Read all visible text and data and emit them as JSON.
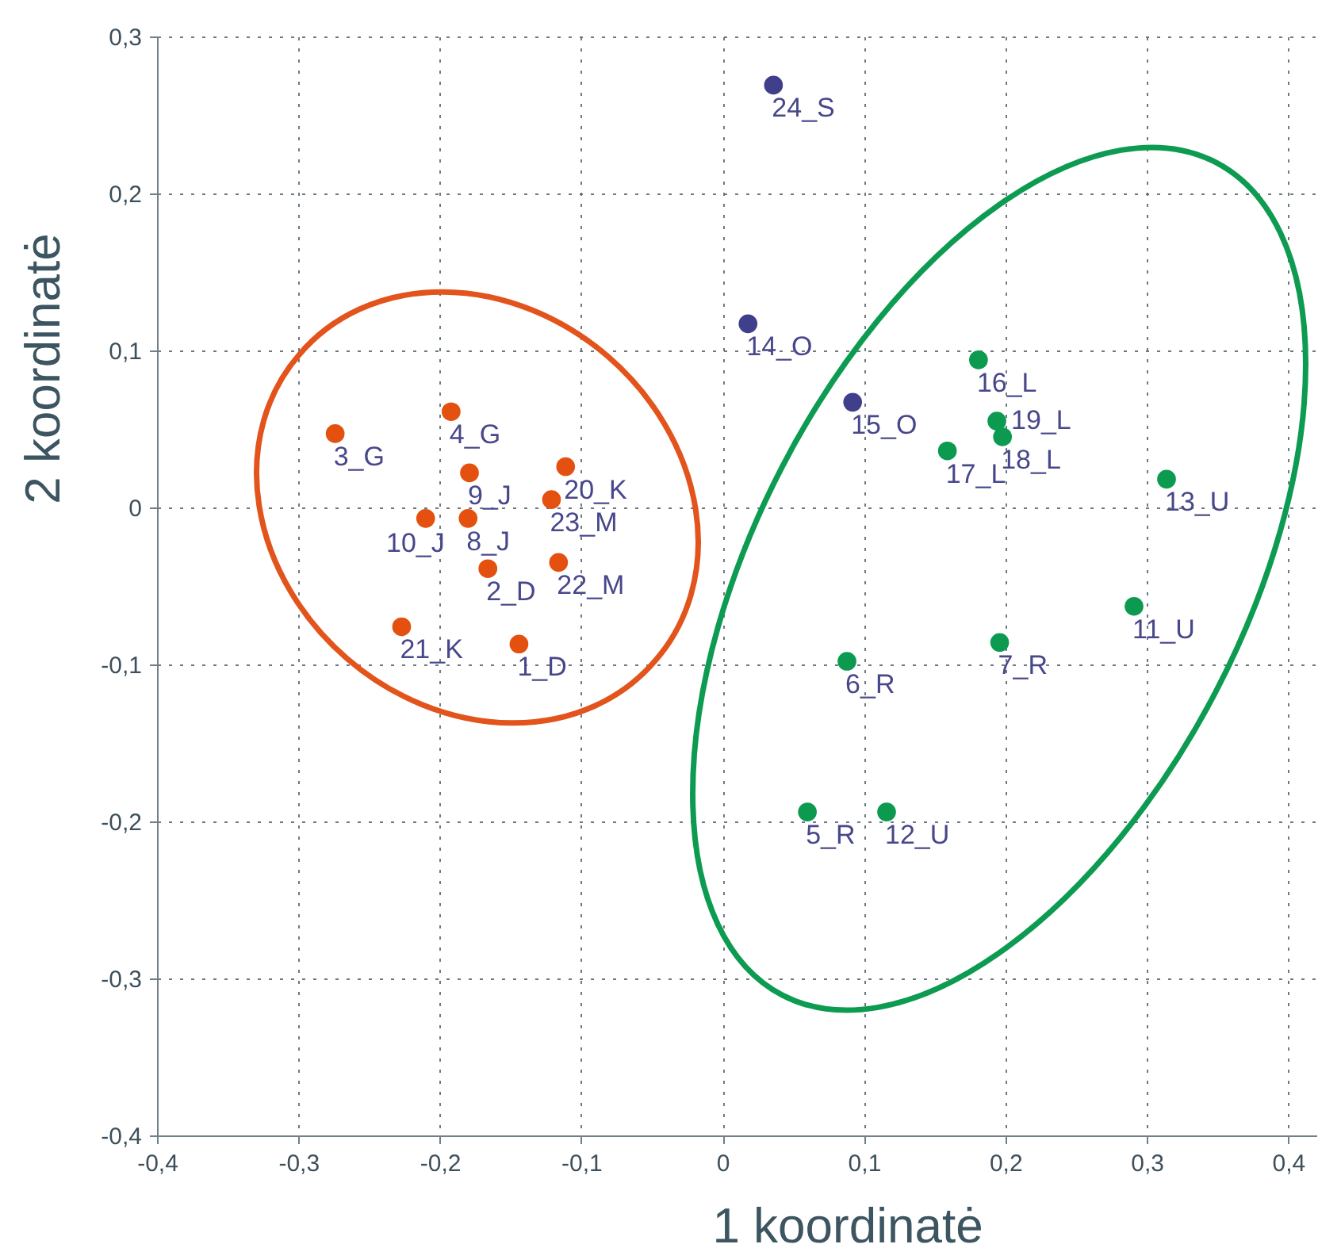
{
  "chart_data": {
    "type": "scatter",
    "xlabel": "1 koordinatė",
    "ylabel": "2 koordinatė",
    "xlim": [
      -0.4,
      0.42
    ],
    "ylim": [
      -0.4,
      0.3
    ],
    "xticks": [
      {
        "value": -0.4,
        "label": "-0,4"
      },
      {
        "value": -0.3,
        "label": "-0,3"
      },
      {
        "value": -0.2,
        "label": "-0,2"
      },
      {
        "value": -0.1,
        "label": "-0,1"
      },
      0,
      {
        "value": 0.1,
        "label": "0,1"
      },
      {
        "value": 0.2,
        "label": "0,2"
      },
      {
        "value": 0.3,
        "label": "0,3"
      },
      {
        "value": 0.4,
        "label": "0,4"
      }
    ],
    "yticks": [
      {
        "value": -0.4,
        "label": "-0,4"
      },
      {
        "value": -0.3,
        "label": "-0,3"
      },
      {
        "value": -0.2,
        "label": "-0,2"
      },
      {
        "value": -0.1,
        "label": "-0,1"
      },
      0,
      {
        "value": 0.1,
        "label": "0,1"
      },
      {
        "value": 0.2,
        "label": "0,2"
      },
      {
        "value": 0.3,
        "label": "0,3"
      }
    ],
    "grid": true,
    "marker": "circle",
    "series": [
      {
        "color": "#e3500f",
        "x": [
          -0.144,
          -0.166,
          -0.274,
          -0.192,
          -0.18,
          -0.179,
          -0.21,
          -0.111,
          -0.227,
          -0.116,
          -0.121
        ],
        "values": [
          -0.087,
          -0.039,
          0.047,
          0.061,
          -0.007,
          0.022,
          -0.007,
          0.026,
          -0.076,
          -0.035,
          0.005
        ]
      },
      {
        "color": "#0b9a4f",
        "x": [
          0.06,
          0.088,
          0.196,
          0.291,
          0.116,
          0.314,
          0.181,
          0.159,
          0.198,
          0.194
        ],
        "values": [
          -0.194,
          -0.098,
          -0.086,
          -0.063,
          -0.194,
          0.018,
          0.094,
          0.036,
          0.045,
          0.055
        ]
      },
      {
        "color": "#3f3f8c",
        "x": [
          0.018,
          0.092,
          0.036
        ],
        "values": [
          0.117,
          0.067,
          0.269
        ]
      }
    ],
    "annotations": [
      {
        "text": "1_D",
        "x": -0.144,
        "y": -0.087
      },
      {
        "text": "2_D",
        "x": -0.166,
        "y": -0.039
      },
      {
        "text": "3_G",
        "x": -0.274,
        "y": 0.047
      },
      {
        "text": "4_G",
        "x": -0.192,
        "y": 0.061
      },
      {
        "text": "5_R",
        "x": 0.06,
        "y": -0.194
      },
      {
        "text": "6_R",
        "x": 0.088,
        "y": -0.098
      },
      {
        "text": "7_R",
        "x": 0.196,
        "y": -0.086
      },
      {
        "text": "8_J",
        "x": -0.18,
        "y": -0.007
      },
      {
        "text": "9_J",
        "x": -0.179,
        "y": 0.022
      },
      {
        "text": "10_J",
        "x": -0.21,
        "y": -0.007
      },
      {
        "text": "11_U",
        "x": 0.291,
        "y": -0.063
      },
      {
        "text": "12_U",
        "x": 0.116,
        "y": -0.194
      },
      {
        "text": "13_U",
        "x": 0.314,
        "y": 0.018
      },
      {
        "text": "14_O",
        "x": 0.018,
        "y": 0.117
      },
      {
        "text": "15_O",
        "x": 0.092,
        "y": 0.067
      },
      {
        "text": "16_L",
        "x": 0.181,
        "y": 0.094
      },
      {
        "text": "17_L",
        "x": 0.159,
        "y": 0.036
      },
      {
        "text": "18_L",
        "x": 0.198,
        "y": 0.045
      },
      {
        "text": "19_L",
        "x": 0.194,
        "y": 0.055
      },
      {
        "text": "20_K",
        "x": -0.111,
        "y": 0.026
      },
      {
        "text": "21_K",
        "x": -0.227,
        "y": -0.076
      },
      {
        "text": "22_M",
        "x": -0.116,
        "y": -0.035
      },
      {
        "text": "23_M",
        "x": -0.121,
        "y": 0.005
      },
      {
        "text": "24_S",
        "x": 0.036,
        "y": 0.269
      }
    ]
  }
}
